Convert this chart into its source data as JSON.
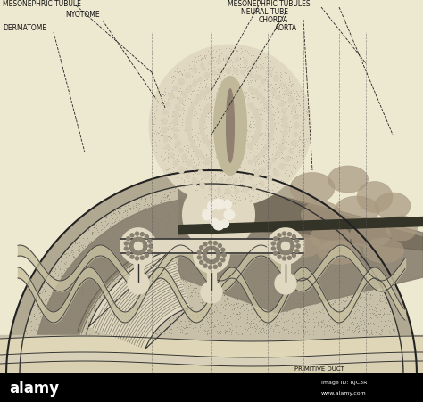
{
  "bg_color": "#ede8d0",
  "dark_color": "#2a2a1a",
  "mid_color": "#888070",
  "light_color": "#e8e0c8",
  "beige": "#d8d0b0",
  "labels": {
    "mesonephric_tubule_left": "MESONEPHRIC TUBULE",
    "myotome": "MYOTOME",
    "dermatome": "DERMATOME",
    "mesonephric_tubules_right": "MESONEPHRIC TUBULES",
    "neural_tube": "NEURAL TUBE",
    "chorda": "CHORDA",
    "aorta": "AORTA",
    "primitive_duct": "PRIMITIVE DUCT",
    "alamy_text": "alamy",
    "image_id": "Image ID: RJC3R",
    "website": "www.alamy.com"
  }
}
